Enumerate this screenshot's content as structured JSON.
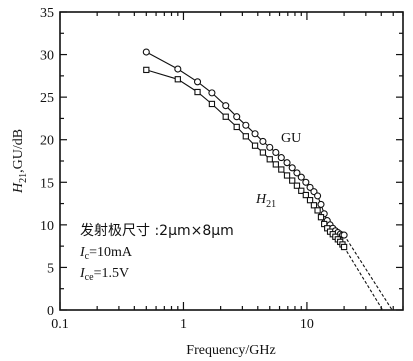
{
  "chart_data": {
    "type": "scatter",
    "xscale": "log",
    "xlim": [
      0.1,
      60
    ],
    "ylim": [
      0,
      35
    ],
    "xlabel": "Frequency/GHz",
    "ylabel": {
      "base": "H",
      "sub": "21",
      "rest": ",GU/dB"
    },
    "x_ticks": [
      {
        "value": 0.1,
        "label": "0.1"
      },
      {
        "value": 1,
        "label": "1"
      },
      {
        "value": 10,
        "label": "10"
      }
    ],
    "y_ticks": [
      {
        "value": 0,
        "label": "0"
      },
      {
        "value": 5,
        "label": "5"
      },
      {
        "value": 10,
        "label": "10"
      },
      {
        "value": 15,
        "label": "15"
      },
      {
        "value": 20,
        "label": "20"
      },
      {
        "value": 25,
        "label": "25"
      },
      {
        "value": 30,
        "label": "30"
      },
      {
        "value": 35,
        "label": "35"
      }
    ],
    "grid": false,
    "series": [
      {
        "name": "GU",
        "marker": "circle",
        "color": "#111111",
        "x": [
          0.5,
          0.9,
          1.3,
          1.7,
          2.2,
          2.7,
          3.2,
          3.8,
          4.4,
          5.0,
          5.6,
          6.2,
          6.9,
          7.6,
          8.3,
          9.0,
          9.8,
          10.6,
          11.4,
          12.2,
          13.0,
          13.8,
          14.6,
          15.4,
          16.2,
          17.0,
          17.8,
          18.6,
          19.4,
          20.0
        ],
        "y": [
          30.3,
          28.3,
          26.8,
          25.5,
          24.0,
          22.7,
          21.7,
          20.7,
          19.8,
          19.1,
          18.5,
          17.9,
          17.3,
          16.7,
          16.1,
          15.6,
          15.0,
          14.4,
          13.9,
          13.4,
          12.4,
          11.3,
          10.5,
          10.0,
          9.6,
          9.3,
          9.1,
          8.9,
          8.8,
          8.8
        ]
      },
      {
        "name": "H21",
        "marker": "square",
        "color": "#111111",
        "x": [
          0.5,
          0.9,
          1.3,
          1.7,
          2.2,
          2.7,
          3.2,
          3.8,
          4.4,
          5.0,
          5.6,
          6.2,
          6.9,
          7.6,
          8.3,
          9.0,
          9.8,
          10.6,
          11.4,
          12.2,
          13.0,
          13.8,
          14.6,
          15.4,
          16.2,
          17.0,
          17.8,
          18.6,
          19.4,
          20.0
        ],
        "y": [
          28.2,
          27.1,
          25.6,
          24.2,
          22.7,
          21.5,
          20.4,
          19.3,
          18.5,
          17.7,
          17.1,
          16.5,
          15.8,
          15.2,
          14.6,
          14.0,
          13.5,
          12.9,
          12.3,
          11.7,
          10.9,
          10.1,
          9.6,
          9.2,
          8.9,
          8.6,
          8.3,
          8.0,
          7.7,
          7.4
        ]
      }
    ],
    "extrapolations": [
      {
        "series": "GU",
        "from": [
          20,
          8.8
        ],
        "to": [
          49,
          0
        ],
        "style": "dashed"
      },
      {
        "series": "H21",
        "from": [
          20,
          7.4
        ],
        "to": [
          41,
          0
        ],
        "style": "dashed"
      }
    ],
    "annotations": {
      "gu_label": "GU",
      "h21_label": {
        "base": "H",
        "sub": "21"
      },
      "emitter_size": "发射极尺寸 :2μm×8μm",
      "ic": {
        "base": "I",
        "sub": "c",
        "rest": "=10mA"
      },
      "vce": {
        "base": "I",
        "sub": "ce",
        "rest": "=1.5V"
      }
    }
  }
}
